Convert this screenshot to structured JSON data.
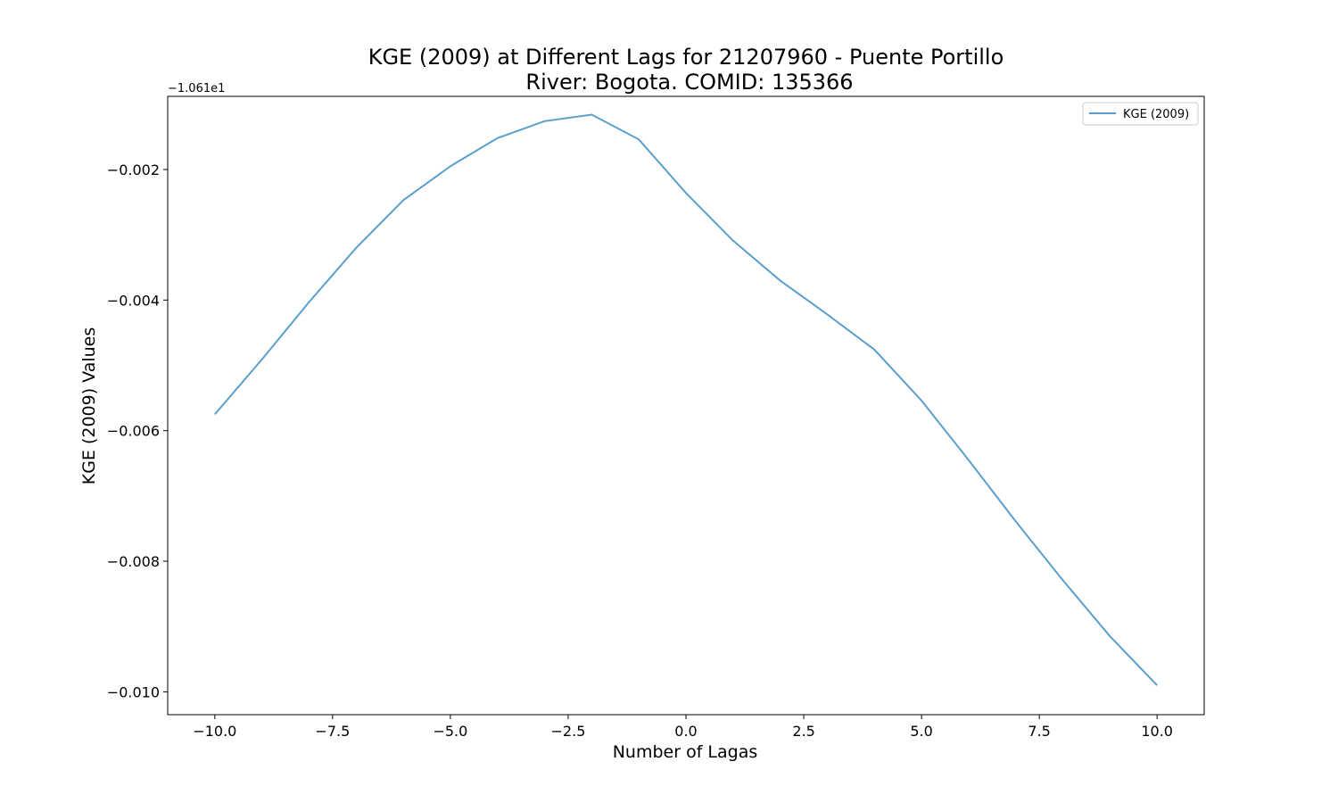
{
  "chart_data": {
    "type": "line",
    "title_line1": "KGE (2009) at Different Lags for 21207960 - Puente Portillo",
    "title_line2": "River: Bogota. COMID: 135366",
    "xlabel": "Number of Lagas",
    "ylabel": "KGE (2009) Values",
    "y_offset_label": "−1.061e1",
    "xlim": [
      -11,
      11
    ],
    "ylim": [
      -0.01035,
      -0.00088
    ],
    "x_ticks": [
      -10,
      -7.5,
      -5,
      -2.5,
      0,
      2.5,
      5,
      7.5,
      10
    ],
    "x_tick_labels": [
      "−10.0",
      "−7.5",
      "−5.0",
      "−2.5",
      "0.0",
      "2.5",
      "5.0",
      "7.5",
      "10.0"
    ],
    "y_ticks": [
      -0.002,
      -0.004,
      -0.006,
      -0.008,
      -0.01
    ],
    "y_tick_labels": [
      "−0.002",
      "−0.004",
      "−0.006",
      "−0.008",
      "−0.010"
    ],
    "grid": false,
    "legend_position": "top-right",
    "series": [
      {
        "name": "KGE (2009)",
        "color": "#5a9fcc",
        "x": [
          -10,
          -9,
          -8,
          -7,
          -6,
          -5,
          -4,
          -3,
          -2,
          -1,
          0,
          1,
          2,
          3,
          4,
          5,
          6,
          7,
          8,
          9,
          10
        ],
        "y": [
          -0.00575,
          -0.00491,
          -0.00403,
          -0.0032,
          -0.00247,
          -0.00195,
          -0.00152,
          -0.00126,
          -0.00116,
          -0.00154,
          -0.00236,
          -0.00309,
          -0.0037,
          -0.00422,
          -0.00476,
          -0.00554,
          -0.00645,
          -0.00739,
          -0.00829,
          -0.00915,
          -0.0099
        ]
      }
    ]
  }
}
